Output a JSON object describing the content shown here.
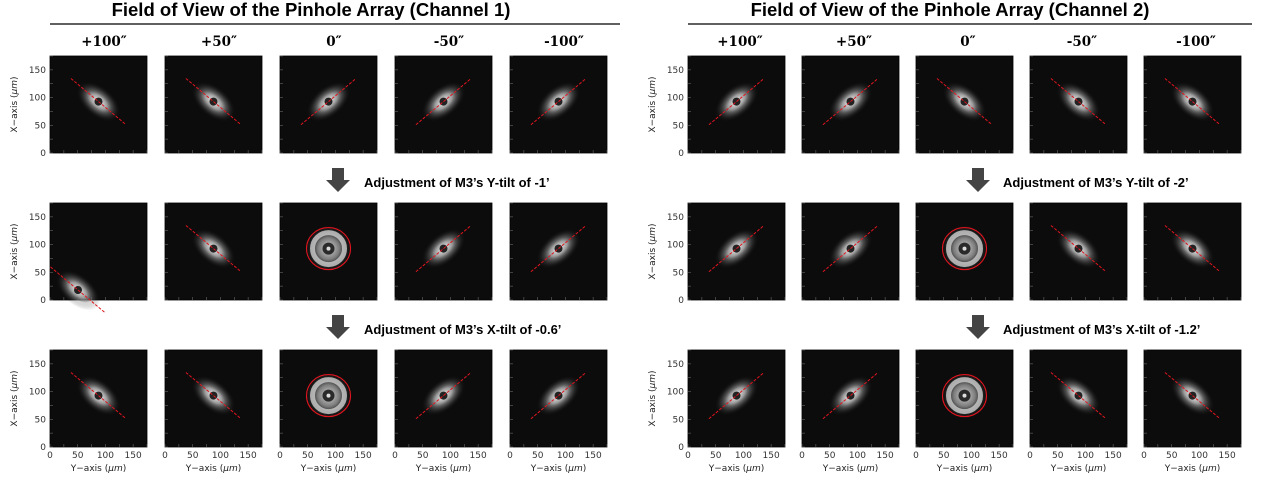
{
  "figure": {
    "panels": [
      {
        "title": "Field of View of the Pinhole Array (Channel 1)",
        "columns": [
          "+100″",
          "+50″",
          "0″",
          "-50″",
          "-100″"
        ],
        "adjustments": [
          "Adjustment of M3’s Y-tilt of -1’",
          "Adjustment of M3’s X-tilt of -0.6’"
        ],
        "rows": [
          [
            {
              "type": "streak",
              "dir": "down"
            },
            {
              "type": "streak",
              "dir": "down"
            },
            {
              "type": "streak",
              "dir": "up"
            },
            {
              "type": "streak",
              "dir": "up"
            },
            {
              "type": "streak",
              "dir": "up"
            }
          ],
          [
            {
              "type": "offcorner",
              "dir": "down"
            },
            {
              "type": "streak",
              "dir": "down"
            },
            {
              "type": "circle"
            },
            {
              "type": "streak",
              "dir": "up"
            },
            {
              "type": "streak",
              "dir": "up"
            }
          ],
          [
            {
              "type": "streak",
              "dir": "down"
            },
            {
              "type": "streak",
              "dir": "down"
            },
            {
              "type": "circle"
            },
            {
              "type": "streak",
              "dir": "up"
            },
            {
              "type": "streak",
              "dir": "up"
            }
          ]
        ]
      },
      {
        "title": "Field of View of the Pinhole Array (Channel 2)",
        "columns": [
          "+100″",
          "+50″",
          "0″",
          "-50″",
          "-100″"
        ],
        "adjustments": [
          "Adjustment of M3’s Y-tilt of -2’",
          "Adjustment of M3’s X-tilt of -1.2’"
        ],
        "rows": [
          [
            {
              "type": "streak",
              "dir": "up"
            },
            {
              "type": "streak",
              "dir": "up"
            },
            {
              "type": "streak",
              "dir": "down"
            },
            {
              "type": "streak",
              "dir": "down"
            },
            {
              "type": "streak",
              "dir": "down"
            }
          ],
          [
            {
              "type": "streak",
              "dir": "up"
            },
            {
              "type": "streak",
              "dir": "up"
            },
            {
              "type": "circle"
            },
            {
              "type": "streak",
              "dir": "down"
            },
            {
              "type": "streak",
              "dir": "down"
            }
          ],
          [
            {
              "type": "streak",
              "dir": "up"
            },
            {
              "type": "streak",
              "dir": "up"
            },
            {
              "type": "circle"
            },
            {
              "type": "streak",
              "dir": "down"
            },
            {
              "type": "streak",
              "dir": "down"
            }
          ]
        ]
      }
    ],
    "axes": {
      "ylabel_prefix": "X−axis (",
      "xlabel_prefix": "Y−axis (",
      "unit": "μm",
      "suffix": ")",
      "y_ticks": [
        "0",
        "50",
        "100",
        "150"
      ],
      "x_ticks": [
        "0",
        "50",
        "100",
        "150"
      ],
      "range": [
        0,
        175
      ]
    },
    "colors": {
      "guide_line": "#e0141e",
      "arrow": "#444444",
      "image_bg": "#0c0c0c"
    }
  }
}
